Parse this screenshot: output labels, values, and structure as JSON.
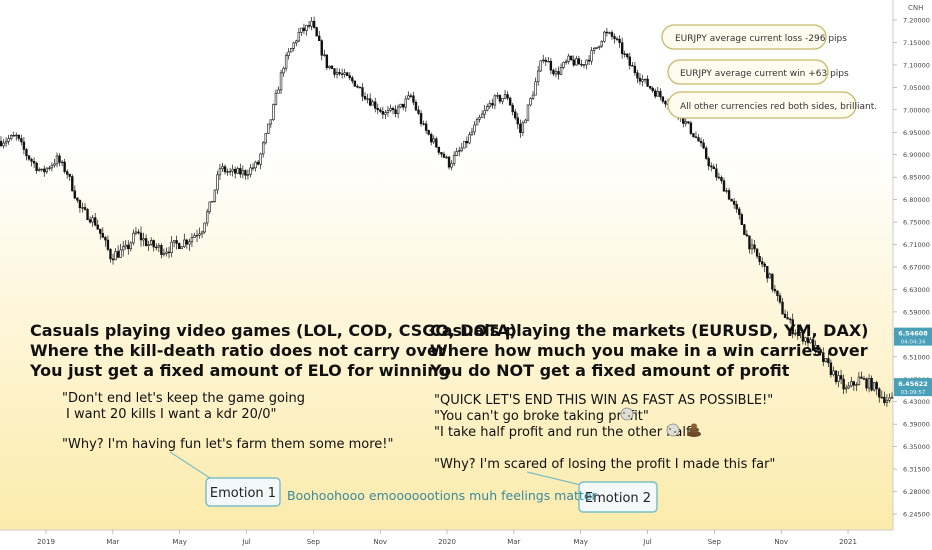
{
  "colors": {
    "bg_top": "#ffffff",
    "bg_bottom": "#fcebab",
    "candle": "#111111",
    "callout_border": "#7cbfc5",
    "callout_fill": "#f3f8f8",
    "callout_text": "#333333",
    "bubble_border": "#c8b86a",
    "bubble_fill": "#fefcef",
    "teal_text": "#3a8aa0",
    "price_badge": "#4aa0b8"
  },
  "chart_data": {
    "type": "candlestick",
    "symbol_tag": "CNH",
    "price_axis_ticks": [
      "7.20000",
      "7.15000",
      "7.10000",
      "7.05000",
      "7.00000",
      "6.95000",
      "6.90000",
      "6.85000",
      "6.80000",
      "6.75000",
      "6.71000",
      "6.67000",
      "6.63000",
      "6.59000",
      "6.55000",
      "6.51000",
      "6.47000",
      "6.43000",
      "6.39000",
      "6.35000",
      "6.31500",
      "6.28000",
      "6.24500"
    ],
    "time_axis_labels": [
      "2019",
      "Mar",
      "May",
      "Jul",
      "Sep",
      "Nov",
      "2020",
      "Mar",
      "May",
      "Jul",
      "Sep",
      "Nov",
      "2021"
    ],
    "price_badges": [
      {
        "value": "6.54608",
        "sub": "04:04:34",
        "price": 6.546
      },
      {
        "value": "6.45622",
        "sub": "03:09:57",
        "price": 6.456
      }
    ],
    "ylim": [
      6.245,
      7.21
    ],
    "price_path": [
      [
        0,
        6.93
      ],
      [
        6,
        6.94
      ],
      [
        10,
        6.9
      ],
      [
        16,
        6.86
      ],
      [
        22,
        6.89
      ],
      [
        26,
        6.86
      ],
      [
        31,
        6.78
      ],
      [
        37,
        6.75
      ],
      [
        43,
        6.69
      ],
      [
        49,
        6.7
      ],
      [
        53,
        6.73
      ],
      [
        58,
        6.71
      ],
      [
        64,
        6.7
      ],
      [
        69,
        6.71
      ],
      [
        74,
        6.72
      ],
      [
        79,
        6.74
      ],
      [
        83,
        6.8
      ],
      [
        86,
        6.87
      ],
      [
        90,
        6.86
      ],
      [
        96,
        6.86
      ],
      [
        101,
        6.88
      ],
      [
        106,
        6.98
      ],
      [
        111,
        7.1
      ],
      [
        117,
        7.17
      ],
      [
        122,
        7.19
      ],
      [
        128,
        7.1
      ],
      [
        133,
        7.08
      ],
      [
        139,
        7.06
      ],
      [
        145,
        7.02
      ],
      [
        151,
        6.99
      ],
      [
        156,
        7.0
      ],
      [
        161,
        7.03
      ],
      [
        166,
        6.96
      ],
      [
        171,
        6.92
      ],
      [
        176,
        6.88
      ],
      [
        182,
        6.92
      ],
      [
        187,
        6.97
      ],
      [
        193,
        7.02
      ],
      [
        199,
        7.03
      ],
      [
        204,
        6.95
      ],
      [
        209,
        7.04
      ],
      [
        213,
        7.12
      ],
      [
        218,
        7.08
      ],
      [
        223,
        7.11
      ],
      [
        228,
        7.1
      ],
      [
        233,
        7.13
      ],
      [
        237,
        7.17
      ],
      [
        241,
        7.16
      ],
      [
        247,
        7.1
      ],
      [
        253,
        7.06
      ],
      [
        259,
        7.03
      ],
      [
        264,
        7.01
      ],
      [
        269,
        6.97
      ],
      [
        274,
        6.93
      ],
      [
        279,
        6.87
      ],
      [
        285,
        6.82
      ],
      [
        290,
        6.76
      ],
      [
        295,
        6.7
      ],
      [
        301,
        6.66
      ],
      [
        306,
        6.6
      ],
      [
        311,
        6.56
      ],
      [
        317,
        6.54
      ],
      [
        322,
        6.51
      ],
      [
        327,
        6.48
      ],
      [
        332,
        6.45
      ],
      [
        337,
        6.47
      ],
      [
        342,
        6.46
      ],
      [
        346,
        6.44
      ],
      [
        350,
        6.43
      ]
    ],
    "annotations_top_right": [
      "EURJPY average current loss -296 pips",
      "EURJPY average current win +63 pips",
      "All other currencies red both sides, brilliant."
    ],
    "left_block": {
      "headline": [
        "Casuals playing video games (LOL, COD, CSGO, DOTA)",
        "Where the kill-death ratio does not carry over",
        "You just get a fixed amount of ELO for winning"
      ],
      "quotes": [
        "\"Don't end let's keep the game going",
        "I want 20 kills I want a kdr 20/0\"",
        "\"Why? I'm having fun let's farm them some more!\""
      ],
      "emotion_label": "Emotion 1"
    },
    "right_block": {
      "headline": [
        "Casuals playing the markets (EURUSD, YM, DAX)",
        "Where how much you make in a win carries over",
        "You do NOT get a fixed amount of profit"
      ],
      "quotes": [
        "\"QUICK LET'S END THIS WIN AS FAST AS POSSIBLE!\"",
        "\"You can't go broke taking profit\"",
        "\"I take half profit and run the other half\"",
        "\"Why? I'm scared of losing the profit I made this far\""
      ],
      "emotion_label": "Emotion 2"
    },
    "center_caption": "Boohoohooo emooooootions muh feelings matter"
  }
}
